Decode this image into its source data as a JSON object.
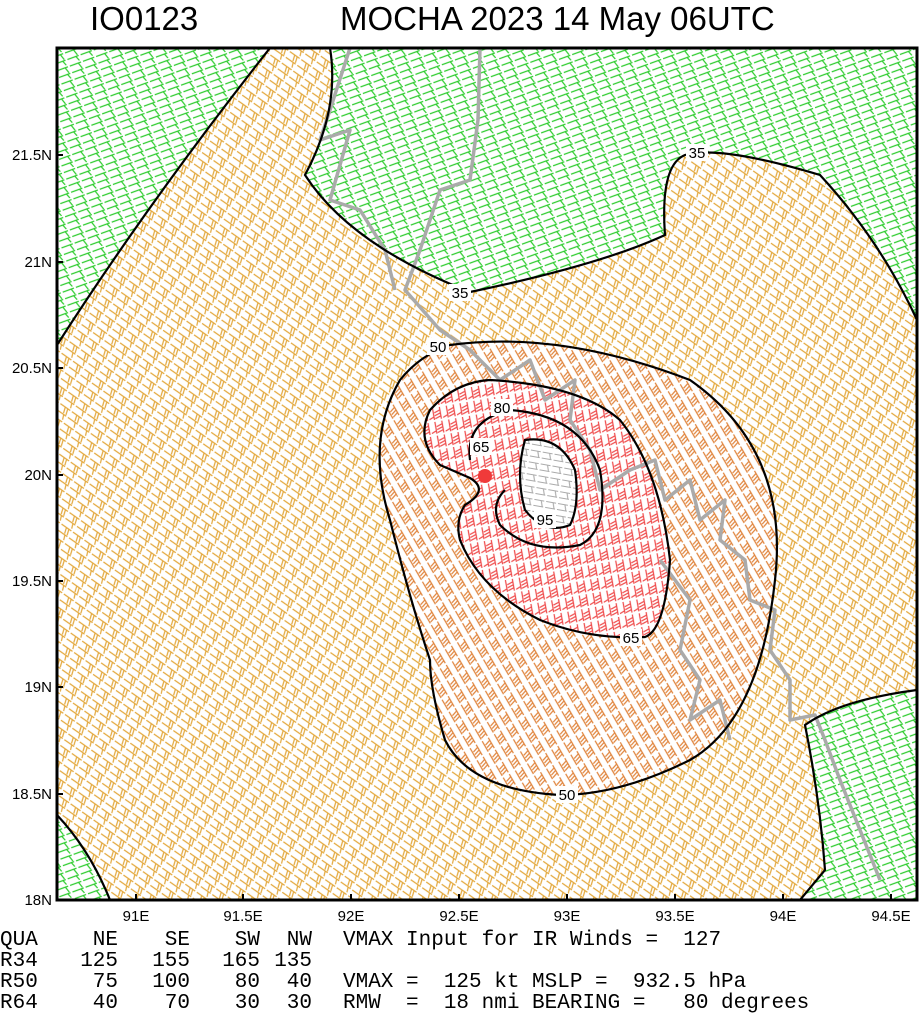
{
  "header": {
    "id": "IO0123",
    "title": "MOCHA 2023 14 May 06UTC"
  },
  "map": {
    "lat_labels": [
      "21.5N",
      "21N",
      "20.5N",
      "20N",
      "19.5N",
      "19N",
      "18.5N",
      "18N"
    ],
    "lon_labels": [
      "91E",
      "91.5E",
      "92E",
      "92.5E",
      "93E",
      "93.5E",
      "94E",
      "94.5E"
    ],
    "contour_labels": [
      "35",
      "35",
      "50",
      "50",
      "65",
      "65",
      "80",
      "95"
    ]
  },
  "table": {
    "header": [
      "QUA",
      "NE",
      "SE",
      "SW",
      "NW"
    ],
    "rows": [
      [
        "R34",
        "125",
        "155",
        "165",
        "135"
      ],
      [
        "R50",
        "75",
        "100",
        "80",
        "40"
      ],
      [
        "R64",
        "40",
        "70",
        "30",
        "30"
      ]
    ],
    "notes": [
      "VMAX Input for IR Winds =  127",
      "",
      "VMAX =  125 kt MSLP =  932.5 hPa",
      "RMW  =  18 nmi BEARING =   80 degrees"
    ]
  }
}
